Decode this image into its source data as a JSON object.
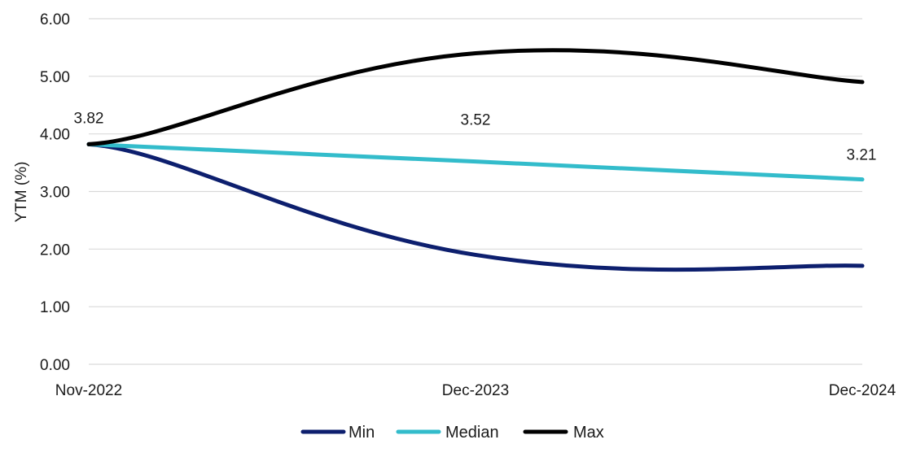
{
  "chart_data": {
    "type": "line",
    "title": "",
    "xlabel": "",
    "ylabel": "YTM (%)",
    "categories": [
      "Nov-2022",
      "Dec-2023",
      "Dec-2024"
    ],
    "ylim": [
      0,
      6
    ],
    "yticks": [
      "0.00",
      "1.00",
      "2.00",
      "3.00",
      "4.00",
      "5.00",
      "6.00"
    ],
    "grid": true,
    "legend_position": "bottom",
    "series": [
      {
        "name": "Min",
        "color": "#0d1f6e",
        "x": [
          "Nov-2022",
          "Dec-2023",
          "Dec-2024"
        ],
        "values": [
          3.82,
          1.9,
          1.71
        ]
      },
      {
        "name": "Median",
        "color": "#33bccb",
        "x": [
          "Nov-2022",
          "Dec-2023",
          "Dec-2024"
        ],
        "values": [
          3.82,
          3.52,
          3.21
        ]
      },
      {
        "name": "Max",
        "color": "#000000",
        "x": [
          "Nov-2022",
          "Dec-2023",
          "Dec-2024"
        ],
        "values": [
          3.82,
          5.4,
          4.9
        ]
      }
    ],
    "data_labels": [
      {
        "text": "3.82",
        "x": "Nov-2022",
        "value": 3.82
      },
      {
        "text": "3.52",
        "x": "Dec-2023",
        "value": 3.52
      },
      {
        "text": "3.21",
        "x": "Dec-2024",
        "value": 3.21
      }
    ]
  }
}
